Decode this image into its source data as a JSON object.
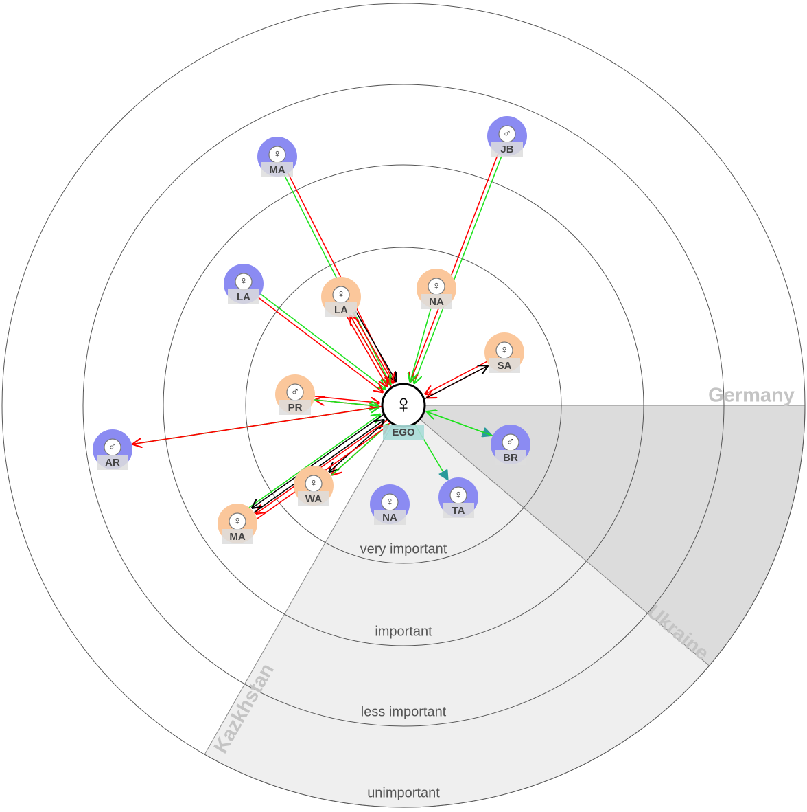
{
  "rings": [
    "very important",
    "important",
    "less important",
    "unimportant"
  ],
  "sectors": [
    "Germany",
    "Ukraine",
    "Kazkhstan"
  ],
  "ego": {
    "symbol": "♀",
    "label": "EGO"
  },
  "nodes": [
    {
      "label": "MA",
      "symbol": "♀",
      "color": "#8b8bf2"
    },
    {
      "label": "JB",
      "symbol": "♂",
      "color": "#8b8bf2"
    },
    {
      "label": "LA",
      "symbol": "♀",
      "color": "#8b8bf2"
    },
    {
      "label": "LA",
      "symbol": "♀",
      "color": "#fbc79b"
    },
    {
      "label": "NA",
      "symbol": "♀",
      "color": "#fbc79b"
    },
    {
      "label": "SA",
      "symbol": "♀",
      "color": "#fbc79b"
    },
    {
      "label": "PR",
      "symbol": "♂",
      "color": "#fbc79b"
    },
    {
      "label": "AR",
      "symbol": "♂",
      "color": "#8b8bf2"
    },
    {
      "label": "BR",
      "symbol": "♂",
      "color": "#8b8bf2"
    },
    {
      "label": "WA",
      "symbol": "♀",
      "color": "#fbc79b"
    },
    {
      "label": "MA",
      "symbol": "♀",
      "color": "#fbc79b"
    },
    {
      "label": "NA",
      "symbol": "♀",
      "color": "#8b8bf2"
    },
    {
      "label": "TA",
      "symbol": "♀",
      "color": "#8b8bf2"
    }
  ]
}
